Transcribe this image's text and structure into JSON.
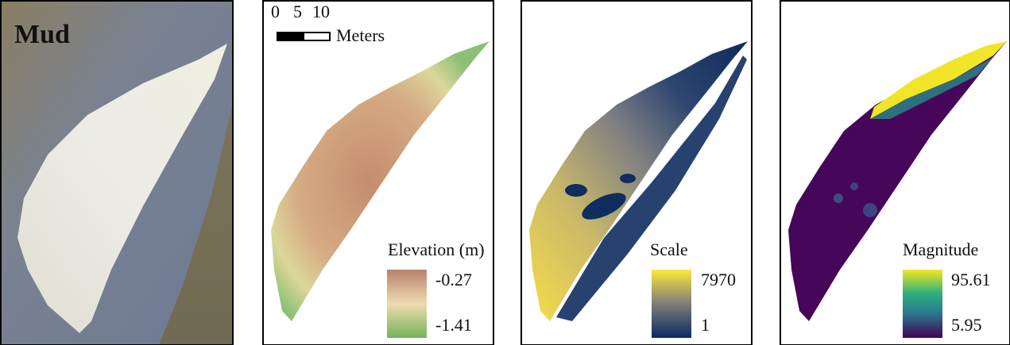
{
  "panels": [
    {
      "label": "Mud"
    },
    {
      "scale_bar": {
        "ticks": [
          0,
          5,
          10
        ],
        "unit": "Meters"
      },
      "legend": {
        "title": "Elevation (m)",
        "max": -0.27,
        "min": -1.41
      }
    },
    {
      "legend": {
        "title": "Scale",
        "max": 7970,
        "min": 1
      }
    },
    {
      "legend": {
        "title": "Magnitude",
        "max": 95.61,
        "min": 5.95
      }
    }
  ]
}
